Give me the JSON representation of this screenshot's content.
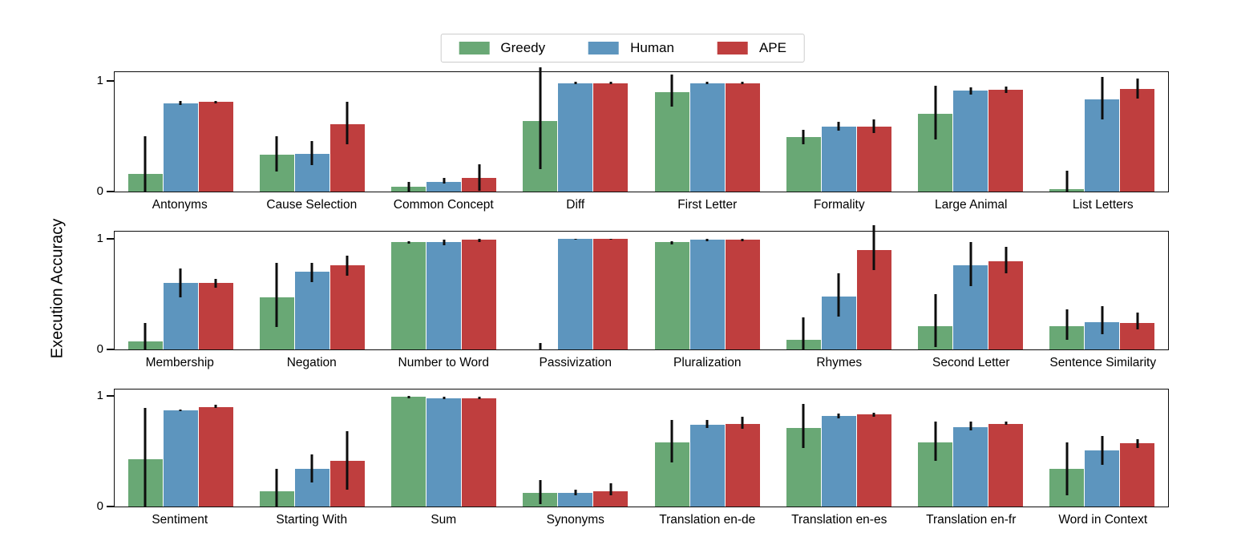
{
  "chart_data": {
    "type": "bar",
    "title": "",
    "ylabel": "Execution Accuracy",
    "xlabel": "",
    "ylim": [
      0,
      1.09
    ],
    "yticks": [
      0,
      1
    ],
    "grid": false,
    "legend": {
      "position": "top-center",
      "entries": [
        {
          "label": "Greedy",
          "color": "#69a875"
        },
        {
          "label": "Human",
          "color": "#5d95be"
        },
        {
          "label": "APE",
          "color": "#bf3e3e"
        }
      ]
    },
    "series_names": [
      "Greedy",
      "Human",
      "APE"
    ],
    "error_bar_color": "#0d0d0d",
    "rows": [
      {
        "panels": [
          {
            "category": "Antonyms",
            "values": [
              0.16,
              0.8,
              0.81
            ],
            "err_lo": [
              0.0,
              0.78,
              0.8
            ],
            "err_hi": [
              0.5,
              0.82,
              0.82
            ]
          },
          {
            "category": "Cause Selection",
            "values": [
              0.33,
              0.34,
              0.61
            ],
            "err_lo": [
              0.18,
              0.24,
              0.43
            ],
            "err_hi": [
              0.5,
              0.46,
              0.81
            ]
          },
          {
            "category": "Common Concept",
            "values": [
              0.04,
              0.09,
              0.12
            ],
            "err_lo": [
              0.0,
              0.07,
              0.01
            ],
            "err_hi": [
              0.09,
              0.12,
              0.25
            ]
          },
          {
            "category": "Diff",
            "values": [
              0.64,
              0.98,
              0.98
            ],
            "err_lo": [
              0.2,
              0.97,
              0.97
            ],
            "err_hi": [
              1.12,
              0.99,
              0.99
            ]
          },
          {
            "category": "First Letter",
            "values": [
              0.9,
              0.98,
              0.98
            ],
            "err_lo": [
              0.77,
              0.97,
              0.97
            ],
            "err_hi": [
              1.06,
              0.99,
              0.99
            ]
          },
          {
            "category": "Formality",
            "values": [
              0.49,
              0.59,
              0.59
            ],
            "err_lo": [
              0.43,
              0.55,
              0.53
            ],
            "err_hi": [
              0.56,
              0.63,
              0.65
            ]
          },
          {
            "category": "Large Animal",
            "values": [
              0.7,
              0.91,
              0.92
            ],
            "err_lo": [
              0.47,
              0.88,
              0.89
            ],
            "err_hi": [
              0.96,
              0.94,
              0.95
            ]
          },
          {
            "category": "List Letters",
            "values": [
              0.02,
              0.83,
              0.93
            ],
            "err_lo": [
              0.0,
              0.65,
              0.84
            ],
            "err_hi": [
              0.19,
              1.04,
              1.02
            ]
          }
        ]
      },
      {
        "panels": [
          {
            "category": "Membership",
            "values": [
              0.07,
              0.6,
              0.6
            ],
            "err_lo": [
              0.0,
              0.47,
              0.56
            ],
            "err_hi": [
              0.24,
              0.73,
              0.64
            ]
          },
          {
            "category": "Negation",
            "values": [
              0.47,
              0.7,
              0.76
            ],
            "err_lo": [
              0.2,
              0.61,
              0.67
            ],
            "err_hi": [
              0.78,
              0.78,
              0.85
            ]
          },
          {
            "category": "Number to Word",
            "values": [
              0.97,
              0.97,
              0.99
            ],
            "err_lo": [
              0.96,
              0.94,
              0.97
            ],
            "err_hi": [
              0.98,
              0.99,
              1.0
            ]
          },
          {
            "category": "Passivization",
            "values": [
              0.0,
              1.0,
              1.0
            ],
            "err_lo": [
              0.0,
              0.99,
              0.99
            ],
            "err_hi": [
              0.06,
              1.0,
              1.0
            ]
          },
          {
            "category": "Pluralization",
            "values": [
              0.97,
              0.99,
              0.99
            ],
            "err_lo": [
              0.95,
              0.98,
              0.98
            ],
            "err_hi": [
              0.98,
              1.0,
              1.0
            ]
          },
          {
            "category": "Rhymes",
            "values": [
              0.09,
              0.48,
              0.9
            ],
            "err_lo": [
              0.0,
              0.3,
              0.72
            ],
            "err_hi": [
              0.29,
              0.69,
              1.12
            ]
          },
          {
            "category": "Second Letter",
            "values": [
              0.21,
              0.76,
              0.8
            ],
            "err_lo": [
              0.02,
              0.57,
              0.69
            ],
            "err_hi": [
              0.5,
              0.97,
              0.93
            ]
          },
          {
            "category": "Sentence Similarity",
            "values": [
              0.21,
              0.25,
              0.24
            ],
            "err_lo": [
              0.09,
              0.14,
              0.18
            ],
            "err_hi": [
              0.36,
              0.39,
              0.33
            ]
          }
        ]
      },
      {
        "panels": [
          {
            "category": "Sentiment",
            "values": [
              0.43,
              0.87,
              0.9
            ],
            "err_lo": [
              0.0,
              0.86,
              0.89
            ],
            "err_hi": [
              0.89,
              0.88,
              0.92
            ]
          },
          {
            "category": "Starting With",
            "values": [
              0.14,
              0.34,
              0.41
            ],
            "err_lo": [
              0.0,
              0.22,
              0.15
            ],
            "err_hi": [
              0.34,
              0.47,
              0.68
            ]
          },
          {
            "category": "Sum",
            "values": [
              0.99,
              0.98,
              0.98
            ],
            "err_lo": [
              0.98,
              0.97,
              0.97
            ],
            "err_hi": [
              1.0,
              0.99,
              0.99
            ]
          },
          {
            "category": "Synonyms",
            "values": [
              0.12,
              0.12,
              0.14
            ],
            "err_lo": [
              0.02,
              0.1,
              0.1
            ],
            "err_hi": [
              0.24,
              0.15,
              0.21
            ]
          },
          {
            "category": "Translation en-de",
            "values": [
              0.58,
              0.74,
              0.75
            ],
            "err_lo": [
              0.4,
              0.71,
              0.7
            ],
            "err_hi": [
              0.78,
              0.78,
              0.81
            ]
          },
          {
            "category": "Translation en-es",
            "values": [
              0.71,
              0.82,
              0.83
            ],
            "err_lo": [
              0.53,
              0.8,
              0.81
            ],
            "err_hi": [
              0.93,
              0.84,
              0.85
            ]
          },
          {
            "category": "Translation en-fr",
            "values": [
              0.58,
              0.72,
              0.75
            ],
            "err_lo": [
              0.41,
              0.69,
              0.74
            ],
            "err_hi": [
              0.77,
              0.77,
              0.77
            ]
          },
          {
            "category": "Word in Context",
            "values": [
              0.34,
              0.51,
              0.57
            ],
            "err_lo": [
              0.1,
              0.38,
              0.53
            ],
            "err_hi": [
              0.58,
              0.64,
              0.61
            ]
          }
        ]
      }
    ]
  }
}
